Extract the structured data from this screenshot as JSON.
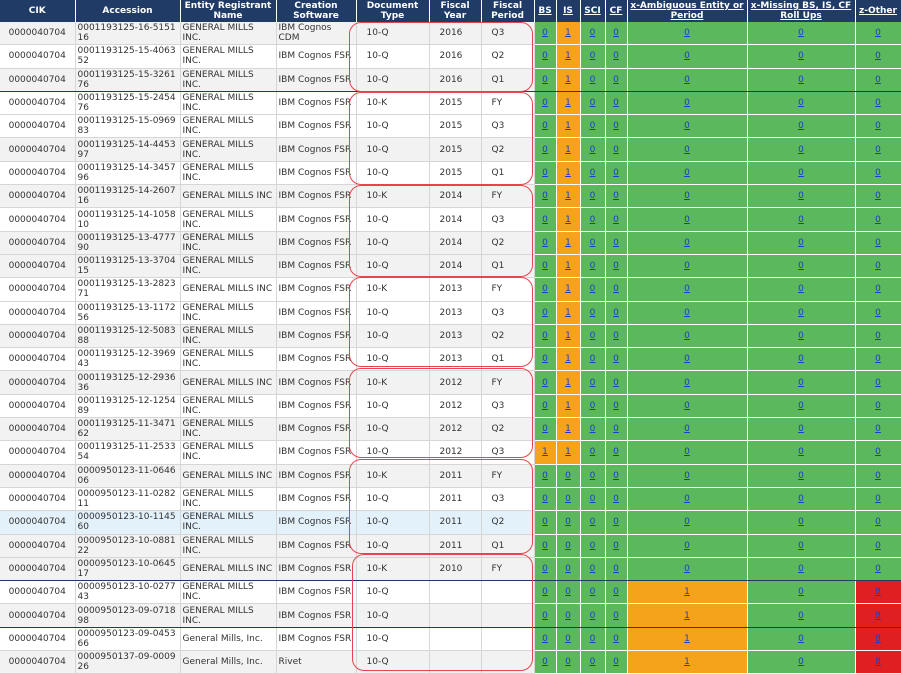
{
  "headers": {
    "cik": "CIK",
    "accession": "Accession",
    "entity": "Entity Registrant Name",
    "software": "Creation Software",
    "doc_type": "Document Type",
    "fiscal_year": "Fiscal Year",
    "fiscal_period": "Fiscal Period",
    "bs": "BS",
    "is": "IS",
    "sci": "SCI",
    "cf": "CF",
    "x_ambiguous": "x-Ambiguous Entity or Period",
    "x_missing": "x-Missing BS, IS, CF Roll Ups",
    "z_other": "z-Other"
  },
  "colors": {
    "header_bg": "#1f3b66",
    "green": "#5cb85c",
    "orange": "#f5a31a",
    "red": "#e02020",
    "link": "#1a3dcc",
    "annotation": "#e8444f"
  },
  "rows": [
    {
      "cik": "0000040704",
      "accession": "0001193125-16-515116",
      "entity": "GENERAL MILLS INC.",
      "software": "IBM Cognos CDM",
      "doc_type": "10-Q",
      "fiscal_year": "2016",
      "fiscal_period": "Q3",
      "bs": "0",
      "is": "1",
      "sci": "0",
      "cf": "0",
      "xa": "0",
      "xm": "0",
      "zo": "0"
    },
    {
      "cik": "0000040704",
      "accession": "0001193125-15-406352",
      "entity": "GENERAL MILLS INC.",
      "software": "IBM Cognos FSR",
      "doc_type": "10-Q",
      "fiscal_year": "2016",
      "fiscal_period": "Q2",
      "bs": "0",
      "is": "1",
      "sci": "0",
      "cf": "0",
      "xa": "0",
      "xm": "0",
      "zo": "0"
    },
    {
      "cik": "0000040704",
      "accession": "0001193125-15-326176",
      "entity": "GENERAL MILLS INC.",
      "software": "IBM Cognos FSR",
      "doc_type": "10-Q",
      "fiscal_year": "2016",
      "fiscal_period": "Q1",
      "bs": "0",
      "is": "1",
      "sci": "0",
      "cf": "0",
      "xa": "0",
      "xm": "0",
      "zo": "0"
    },
    {
      "cik": "0000040704",
      "accession": "0001193125-15-245476",
      "entity": "GENERAL MILLS INC.",
      "software": "IBM Cognos FSR",
      "doc_type": "10-K",
      "fiscal_year": "2015",
      "fiscal_period": "FY",
      "bs": "0",
      "is": "1",
      "sci": "0",
      "cf": "0",
      "xa": "0",
      "xm": "0",
      "zo": "0"
    },
    {
      "cik": "0000040704",
      "accession": "0001193125-15-096983",
      "entity": "GENERAL MILLS INC.",
      "software": "IBM Cognos FSR",
      "doc_type": "10-Q",
      "fiscal_year": "2015",
      "fiscal_period": "Q3",
      "bs": "0",
      "is": "1",
      "sci": "0",
      "cf": "0",
      "xa": "0",
      "xm": "0",
      "zo": "0"
    },
    {
      "cik": "0000040704",
      "accession": "0001193125-14-445397",
      "entity": "GENERAL MILLS INC.",
      "software": "IBM Cognos FSR",
      "doc_type": "10-Q",
      "fiscal_year": "2015",
      "fiscal_period": "Q2",
      "bs": "0",
      "is": "1",
      "sci": "0",
      "cf": "0",
      "xa": "0",
      "xm": "0",
      "zo": "0"
    },
    {
      "cik": "0000040704",
      "accession": "0001193125-14-345796",
      "entity": "GENERAL MILLS INC.",
      "software": "IBM Cognos FSR",
      "doc_type": "10-Q",
      "fiscal_year": "2015",
      "fiscal_period": "Q1",
      "bs": "0",
      "is": "1",
      "sci": "0",
      "cf": "0",
      "xa": "0",
      "xm": "0",
      "zo": "0"
    },
    {
      "cik": "0000040704",
      "accession": "0001193125-14-260716",
      "entity": "GENERAL MILLS INC",
      "software": "IBM Cognos FSR",
      "doc_type": "10-K",
      "fiscal_year": "2014",
      "fiscal_period": "FY",
      "bs": "0",
      "is": "1",
      "sci": "0",
      "cf": "0",
      "xa": "0",
      "xm": "0",
      "zo": "0"
    },
    {
      "cik": "0000040704",
      "accession": "0001193125-14-105810",
      "entity": "GENERAL MILLS INC.",
      "software": "IBM Cognos FSR",
      "doc_type": "10-Q",
      "fiscal_year": "2014",
      "fiscal_period": "Q3",
      "bs": "0",
      "is": "1",
      "sci": "0",
      "cf": "0",
      "xa": "0",
      "xm": "0",
      "zo": "0"
    },
    {
      "cik": "0000040704",
      "accession": "0001193125-13-477790",
      "entity": "GENERAL MILLS INC.",
      "software": "IBM Cognos FSR",
      "doc_type": "10-Q",
      "fiscal_year": "2014",
      "fiscal_period": "Q2",
      "bs": "0",
      "is": "1",
      "sci": "0",
      "cf": "0",
      "xa": "0",
      "xm": "0",
      "zo": "0"
    },
    {
      "cik": "0000040704",
      "accession": "0001193125-13-370415",
      "entity": "GENERAL MILLS INC.",
      "software": "IBM Cognos FSR",
      "doc_type": "10-Q",
      "fiscal_year": "2014",
      "fiscal_period": "Q1",
      "bs": "0",
      "is": "1",
      "sci": "0",
      "cf": "0",
      "xa": "0",
      "xm": "0",
      "zo": "0"
    },
    {
      "cik": "0000040704",
      "accession": "0001193125-13-282371",
      "entity": "GENERAL MILLS INC",
      "software": "IBM Cognos FSR",
      "doc_type": "10-K",
      "fiscal_year": "2013",
      "fiscal_period": "FY",
      "bs": "0",
      "is": "1",
      "sci": "0",
      "cf": "0",
      "xa": "0",
      "xm": "0",
      "zo": "0"
    },
    {
      "cik": "0000040704",
      "accession": "0001193125-13-117256",
      "entity": "GENERAL MILLS INC.",
      "software": "IBM Cognos FSR",
      "doc_type": "10-Q",
      "fiscal_year": "2013",
      "fiscal_period": "Q3",
      "bs": "0",
      "is": "1",
      "sci": "0",
      "cf": "0",
      "xa": "0",
      "xm": "0",
      "zo": "0"
    },
    {
      "cik": "0000040704",
      "accession": "0001193125-12-508388",
      "entity": "GENERAL MILLS INC.",
      "software": "IBM Cognos FSR",
      "doc_type": "10-Q",
      "fiscal_year": "2013",
      "fiscal_period": "Q2",
      "bs": "0",
      "is": "1",
      "sci": "0",
      "cf": "0",
      "xa": "0",
      "xm": "0",
      "zo": "0"
    },
    {
      "cik": "0000040704",
      "accession": "0001193125-12-396943",
      "entity": "GENERAL MILLS INC.",
      "software": "IBM Cognos FSR",
      "doc_type": "10-Q",
      "fiscal_year": "2013",
      "fiscal_period": "Q1",
      "bs": "0",
      "is": "1",
      "sci": "0",
      "cf": "0",
      "xa": "0",
      "xm": "0",
      "zo": "0"
    },
    {
      "cik": "0000040704",
      "accession": "0001193125-12-293636",
      "entity": "GENERAL MILLS INC",
      "software": "IBM Cognos FSR",
      "doc_type": "10-K",
      "fiscal_year": "2012",
      "fiscal_period": "FY",
      "bs": "0",
      "is": "1",
      "sci": "0",
      "cf": "0",
      "xa": "0",
      "xm": "0",
      "zo": "0"
    },
    {
      "cik": "0000040704",
      "accession": "0001193125-12-125489",
      "entity": "GENERAL MILLS INC.",
      "software": "IBM Cognos FSR",
      "doc_type": "10-Q",
      "fiscal_year": "2012",
      "fiscal_period": "Q3",
      "bs": "0",
      "is": "1",
      "sci": "0",
      "cf": "0",
      "xa": "0",
      "xm": "0",
      "zo": "0"
    },
    {
      "cik": "0000040704",
      "accession": "0001193125-11-347162",
      "entity": "GENERAL MILLS INC.",
      "software": "IBM Cognos FSR",
      "doc_type": "10-Q",
      "fiscal_year": "2012",
      "fiscal_period": "Q2",
      "bs": "0",
      "is": "1",
      "sci": "0",
      "cf": "0",
      "xa": "0",
      "xm": "0",
      "zo": "0"
    },
    {
      "cik": "0000040704",
      "accession": "0001193125-11-253354",
      "entity": "GENERAL MILLS INC.",
      "software": "IBM Cognos FSR",
      "doc_type": "10-Q",
      "fiscal_year": "2012",
      "fiscal_period": "Q3",
      "bs": "1",
      "is": "1",
      "sci": "0",
      "cf": "0",
      "xa": "0",
      "xm": "0",
      "zo": "0"
    },
    {
      "cik": "0000040704",
      "accession": "0000950123-11-064606",
      "entity": "GENERAL MILLS INC",
      "software": "IBM Cognos FSR",
      "doc_type": "10-K",
      "fiscal_year": "2011",
      "fiscal_period": "FY",
      "bs": "0",
      "is": "0",
      "sci": "0",
      "cf": "0",
      "xa": "0",
      "xm": "0",
      "zo": "0"
    },
    {
      "cik": "0000040704",
      "accession": "0000950123-11-028211",
      "entity": "GENERAL MILLS INC.",
      "software": "IBM Cognos FSR",
      "doc_type": "10-Q",
      "fiscal_year": "2011",
      "fiscal_period": "Q3",
      "bs": "0",
      "is": "0",
      "sci": "0",
      "cf": "0",
      "xa": "0",
      "xm": "0",
      "zo": "0"
    },
    {
      "cik": "0000040704",
      "accession": "0000950123-10-114560",
      "entity": "GENERAL MILLS INC.",
      "software": "IBM Cognos FSR",
      "doc_type": "10-Q",
      "fiscal_year": "2011",
      "fiscal_period": "Q2",
      "bs": "0",
      "is": "0",
      "sci": "0",
      "cf": "0",
      "xa": "0",
      "xm": "0",
      "zo": "0"
    },
    {
      "cik": "0000040704",
      "accession": "0000950123-10-088122",
      "entity": "GENERAL MILLS INC.",
      "software": "IBM Cognos FSR",
      "doc_type": "10-Q",
      "fiscal_year": "2011",
      "fiscal_period": "Q1",
      "bs": "0",
      "is": "0",
      "sci": "0",
      "cf": "0",
      "xa": "0",
      "xm": "0",
      "zo": "0"
    },
    {
      "cik": "0000040704",
      "accession": "0000950123-10-064517",
      "entity": "GENERAL MILLS INC",
      "software": "IBM Cognos FSR",
      "doc_type": "10-K",
      "fiscal_year": "2010",
      "fiscal_period": "FY",
      "bs": "0",
      "is": "0",
      "sci": "0",
      "cf": "0",
      "xa": "0",
      "xm": "0",
      "zo": "0"
    },
    {
      "cik": "0000040704",
      "accession": "0000950123-10-027743",
      "entity": "GENERAL MILLS INC.",
      "software": "IBM Cognos FSR",
      "doc_type": "10-Q",
      "fiscal_year": "",
      "fiscal_period": "",
      "bs": "0",
      "is": "0",
      "sci": "0",
      "cf": "0",
      "xa": "1",
      "xm": "0",
      "zo": "8"
    },
    {
      "cik": "0000040704",
      "accession": "0000950123-09-071898",
      "entity": "GENERAL MILLS INC.",
      "software": "IBM Cognos FSR",
      "doc_type": "10-Q",
      "fiscal_year": "",
      "fiscal_period": "",
      "bs": "0",
      "is": "0",
      "sci": "0",
      "cf": "0",
      "xa": "1",
      "xm": "0",
      "zo": "8"
    },
    {
      "cik": "0000040704",
      "accession": "0000950123-09-045366",
      "entity": "General Mills, Inc.",
      "software": "IBM Cognos FSR",
      "doc_type": "10-Q",
      "fiscal_year": "",
      "fiscal_period": "",
      "bs": "0",
      "is": "0",
      "sci": "0",
      "cf": "0",
      "xa": "1",
      "xm": "0",
      "zo": "8"
    },
    {
      "cik": "0000040704",
      "accession": "0000950137-09-000926",
      "entity": "General Mills, Inc.",
      "software": "Rivet",
      "doc_type": "10-Q",
      "fiscal_year": "",
      "fiscal_period": "",
      "bs": "0",
      "is": "0",
      "sci": "0",
      "cf": "0",
      "xa": "1",
      "xm": "0",
      "zo": "8"
    }
  ]
}
